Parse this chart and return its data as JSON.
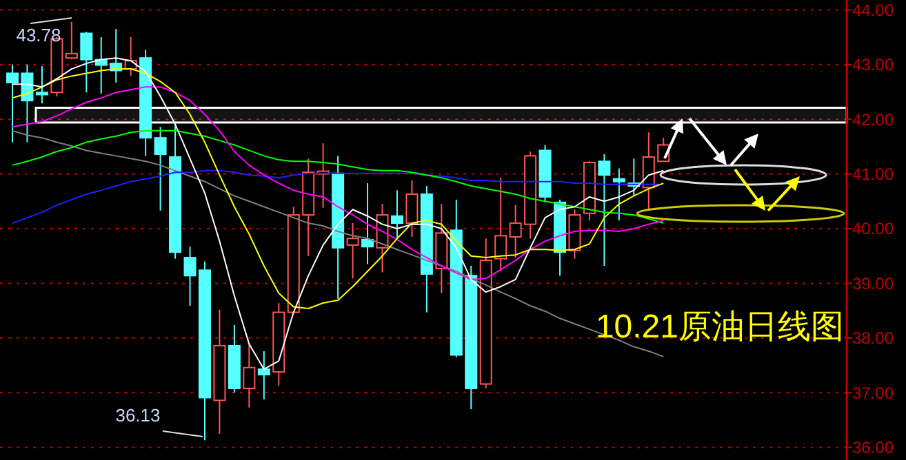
{
  "chart_data": {
    "type": "candlestick",
    "title": "10.21原油日线图",
    "categories": [
      null,
      null,
      null,
      null,
      null,
      null,
      null,
      null,
      null,
      null,
      null,
      null,
      null,
      null,
      null,
      null,
      null,
      null,
      null,
      null,
      null,
      null,
      null,
      null,
      null,
      null,
      null,
      null,
      null,
      null,
      null,
      null,
      null,
      null,
      null,
      null,
      null,
      null,
      null,
      null,
      null,
      null,
      null,
      null,
      null,
      null,
      null,
      null,
      null,
      null,
      null,
      null,
      null,
      null,
      null,
      null,
      null
    ],
    "ohlc": [
      [
        42.84,
        43.0,
        41.58,
        42.67
      ],
      [
        42.84,
        43.0,
        41.58,
        42.34
      ],
      [
        42.49,
        42.97,
        42.29,
        42.45
      ],
      [
        42.49,
        43.5,
        42.42,
        43.47
      ],
      [
        43.12,
        43.78,
        43.1,
        43.2
      ],
      [
        43.57,
        43.6,
        42.49,
        43.09
      ],
      [
        43.09,
        43.5,
        42.47,
        42.99
      ],
      [
        43.02,
        43.65,
        42.67,
        42.89
      ],
      [
        42.92,
        43.5,
        42.79,
        43.07
      ],
      [
        43.12,
        43.27,
        41.33,
        41.66
      ],
      [
        41.66,
        41.86,
        40.33,
        41.36
      ],
      [
        41.31,
        41.91,
        39.45,
        39.57
      ],
      [
        39.47,
        39.67,
        38.59,
        39.14
      ],
      [
        39.24,
        39.4,
        36.13,
        36.91
      ],
      [
        36.86,
        38.52,
        36.25,
        37.86
      ],
      [
        37.86,
        38.24,
        37.0,
        37.08
      ],
      [
        37.08,
        37.89,
        36.73,
        37.46
      ],
      [
        37.43,
        37.76,
        36.88,
        37.33
      ],
      [
        37.38,
        38.64,
        37.13,
        38.47
      ],
      [
        38.47,
        40.4,
        38.45,
        40.25
      ],
      [
        40.25,
        41.28,
        39.5,
        41.03
      ],
      [
        41.0,
        41.56,
        40.38,
        41.05
      ],
      [
        41.01,
        41.33,
        38.72,
        39.65
      ],
      [
        39.7,
        40.1,
        39.09,
        39.82
      ],
      [
        39.8,
        40.83,
        39.35,
        39.67
      ],
      [
        39.65,
        40.45,
        39.2,
        40.25
      ],
      [
        40.23,
        40.7,
        39.82,
        40.1
      ],
      [
        40.1,
        40.88,
        39.85,
        40.63
      ],
      [
        40.63,
        40.78,
        38.47,
        39.17
      ],
      [
        39.27,
        40.45,
        38.82,
        39.92
      ],
      [
        39.97,
        40.53,
        37.65,
        37.69
      ],
      [
        39.14,
        39.32,
        36.7,
        37.08
      ],
      [
        37.16,
        39.82,
        37.08,
        39.42
      ],
      [
        39.45,
        40.93,
        39.22,
        39.87
      ],
      [
        39.85,
        40.43,
        39.47,
        40.1
      ],
      [
        40.08,
        41.41,
        39.82,
        41.33
      ],
      [
        41.43,
        41.53,
        40.48,
        40.58
      ],
      [
        40.48,
        40.53,
        39.14,
        39.57
      ],
      [
        39.6,
        40.35,
        39.45,
        40.25
      ],
      [
        40.28,
        41.23,
        40.15,
        41.21
      ],
      [
        41.23,
        41.36,
        39.32,
        40.98
      ],
      [
        40.91,
        41.1,
        40.15,
        40.86
      ],
      [
        40.83,
        41.28,
        40.6,
        40.78
      ],
      [
        40.75,
        41.76,
        40.33,
        41.31
      ],
      [
        41.23,
        41.66,
        41.23,
        41.53
      ],
      null,
      null,
      null,
      null,
      null,
      null,
      null,
      null,
      null,
      null,
      null,
      null
    ],
    "colors": [
      "#54ffff",
      "#54ffff",
      "#54ffff",
      "#ff5555",
      "#ff5555",
      "#54ffff",
      "#54ffff",
      "#54ffff",
      "#ff5555",
      "#54ffff",
      "#54ffff",
      "#54ffff",
      "#54ffff",
      "#54ffff",
      "#ff5555",
      "#54ffff",
      "#ff5555",
      "#54ffff",
      "#ff5555",
      "#ff5555",
      "#ff5555",
      "#ff5555",
      "#54ffff",
      "#ff5555",
      "#54ffff",
      "#ff5555",
      "#54ffff",
      "#ff5555",
      "#54ffff",
      "#ff5555",
      "#54ffff",
      "#54ffff",
      "#ff5555",
      "#ff5555",
      "#ff5555",
      "#ff5555",
      "#54ffff",
      "#54ffff",
      "#ff5555",
      "#ff5555",
      "#54ffff",
      "#54ffff",
      "#54ffff",
      "#ff5555",
      "#ff5555",
      null,
      null,
      null,
      null,
      null,
      null,
      null,
      null,
      null,
      null,
      null,
      null
    ],
    "series": [
      {
        "type": "line",
        "color": "#808080",
        "values": [
          41.79,
          41.71,
          41.66,
          41.58,
          41.51,
          41.43,
          41.38,
          41.33,
          41.28,
          41.23,
          41.16,
          41.06,
          40.96,
          40.86,
          40.73,
          40.6,
          40.5,
          40.4,
          40.3,
          40.2,
          40.1,
          40.05,
          39.95,
          39.87,
          39.82,
          39.72,
          39.62,
          39.52,
          39.42,
          39.32,
          39.22,
          39.09,
          38.97,
          38.84,
          38.72,
          38.59,
          38.49,
          38.36,
          38.26,
          38.16,
          38.06,
          37.96,
          37.84,
          37.76,
          37.66,
          null,
          null,
          null,
          null,
          null,
          null,
          null,
          null,
          null,
          null,
          null,
          null
        ]
      },
      {
        "type": "line",
        "color": "#2020ff",
        "values": [
          40.1,
          40.2,
          40.3,
          40.43,
          40.53,
          40.63,
          40.7,
          40.78,
          40.86,
          40.91,
          40.96,
          41.03,
          41.03,
          41.06,
          41.06,
          41.03,
          40.98,
          40.96,
          40.93,
          40.98,
          41.01,
          41.01,
          41.01,
          41.01,
          41.01,
          41.01,
          41.01,
          41.01,
          40.98,
          40.96,
          40.93,
          40.88,
          40.88,
          40.86,
          40.86,
          40.86,
          40.86,
          40.86,
          40.83,
          40.83,
          40.81,
          40.81,
          40.81,
          40.81,
          40.81,
          null,
          null,
          null,
          null,
          null,
          null,
          null,
          null,
          null,
          null,
          null,
          null
        ]
      },
      {
        "type": "line",
        "color": "#00ff00",
        "values": [
          41.16,
          41.23,
          41.31,
          41.41,
          41.48,
          41.58,
          41.64,
          41.69,
          41.76,
          41.79,
          41.79,
          41.79,
          41.74,
          41.69,
          41.61,
          41.53,
          41.43,
          41.33,
          41.26,
          41.23,
          41.23,
          41.21,
          41.18,
          41.13,
          41.08,
          41.06,
          41.06,
          41.03,
          40.98,
          40.93,
          40.86,
          40.78,
          40.73,
          40.68,
          40.63,
          40.55,
          40.5,
          40.45,
          40.4,
          40.35,
          40.3,
          40.28,
          40.25,
          40.18,
          40.1,
          null,
          null,
          null,
          null,
          null,
          null,
          null,
          null,
          null,
          null,
          null,
          null
        ]
      },
      {
        "type": "line",
        "color": "#ff00ff",
        "values": [
          41.86,
          41.91,
          41.96,
          42.06,
          42.19,
          42.31,
          42.39,
          42.49,
          42.54,
          42.59,
          42.59,
          42.49,
          42.34,
          42.09,
          41.79,
          41.41,
          41.16,
          40.98,
          40.83,
          40.7,
          40.63,
          40.58,
          40.4,
          40.25,
          40.08,
          39.95,
          39.8,
          39.62,
          39.47,
          39.32,
          39.19,
          39.07,
          39.09,
          39.25,
          39.42,
          39.62,
          39.77,
          39.87,
          39.95,
          39.97,
          39.97,
          39.95,
          40.0,
          40.08,
          40.15,
          null,
          null,
          null,
          null,
          null,
          null,
          null,
          null,
          null,
          null,
          null,
          null
        ]
      },
      {
        "type": "line",
        "color": "#ffff00",
        "values": [
          42.39,
          42.47,
          42.59,
          42.72,
          42.79,
          42.84,
          42.89,
          42.92,
          42.92,
          42.84,
          42.69,
          42.49,
          42.09,
          41.58,
          40.98,
          40.4,
          39.9,
          39.32,
          38.82,
          38.57,
          38.54,
          38.64,
          38.69,
          38.94,
          39.22,
          39.5,
          39.82,
          40.1,
          40.15,
          40.08,
          39.77,
          39.5,
          39.47,
          39.5,
          39.52,
          39.62,
          39.62,
          39.6,
          39.62,
          39.72,
          40.2,
          40.45,
          40.6,
          40.73,
          40.83,
          null,
          null,
          null,
          null,
          null,
          null,
          null,
          null,
          null,
          null,
          null,
          null
        ]
      },
      {
        "type": "line",
        "color": "#ffffff",
        "values": [
          42.64,
          42.64,
          42.59,
          42.74,
          42.92,
          43.02,
          43.09,
          43.12,
          43.07,
          42.87,
          42.42,
          41.91,
          41.28,
          40.65,
          39.77,
          38.77,
          37.89,
          37.43,
          37.58,
          38.47,
          39.14,
          39.7,
          40.08,
          40.35,
          40.23,
          40.08,
          40.0,
          40.08,
          40.08,
          40.0,
          39.65,
          39.07,
          38.84,
          38.94,
          39.07,
          39.65,
          40.2,
          40.35,
          40.4,
          40.58,
          40.5,
          40.58,
          40.7,
          40.98,
          41.06,
          null,
          null,
          null,
          null,
          null,
          null,
          null,
          null,
          null,
          null,
          null,
          null
        ]
      }
    ],
    "ylim": [
      35.77,
      44.18
    ],
    "yticks": [
      {
        "value": 36,
        "label": "36.00"
      },
      {
        "value": 37,
        "label": "37.00"
      },
      {
        "value": 38,
        "label": "38.00"
      },
      {
        "value": 39,
        "label": "39.00"
      },
      {
        "value": 40,
        "label": "40.00"
      },
      {
        "value": 41,
        "label": "41.00"
      },
      {
        "value": 42,
        "label": "42.00"
      },
      {
        "value": 43,
        "label": "43.00"
      },
      {
        "value": 44,
        "label": "44.00"
      }
    ],
    "grid": "y",
    "tick_labels": "y",
    "bands": [
      {
        "axis": "y",
        "from": 41.94,
        "to": 42.21,
        "color": "#ffffff"
      }
    ],
    "annotations": [
      "43.78",
      "36.13"
    ]
  }
}
